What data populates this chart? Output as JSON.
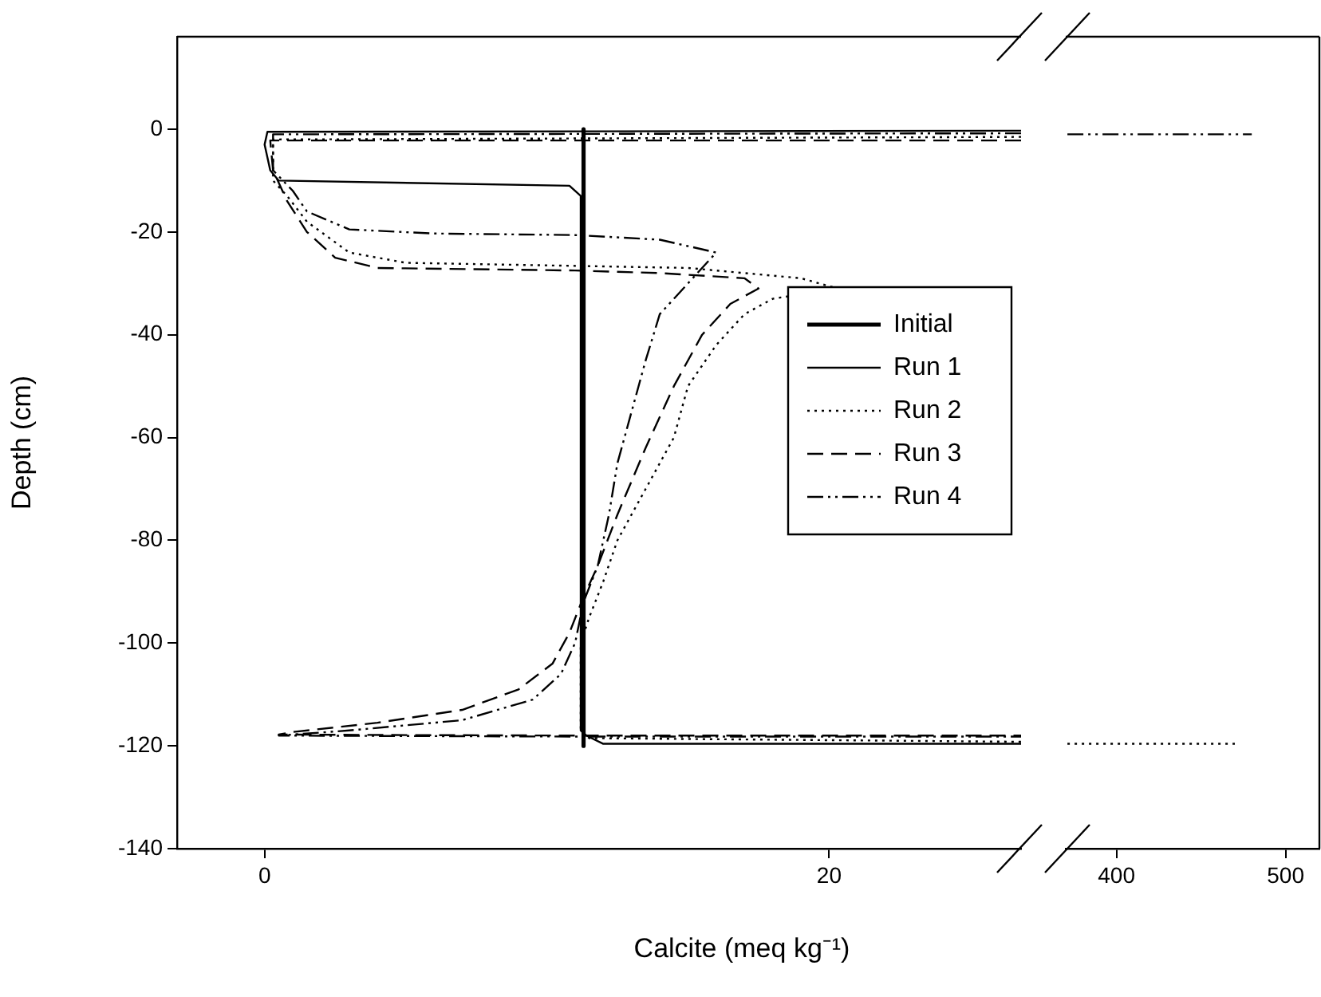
{
  "chart_data": [
    {
      "type": "line",
      "xlabel": "Calcite (meq kg⁻¹)",
      "ylabel": "Depth (cm)",
      "legend": "right",
      "grid": false,
      "xlim": [
        -3.1,
        26.8
      ],
      "xticks": [
        0,
        20
      ],
      "ylim": [
        -140,
        18
      ],
      "yticks": [
        -140,
        -120,
        -100,
        -80,
        -60,
        -40,
        -20,
        0
      ],
      "series": [
        {
          "name": "Initial",
          "color": "#000000",
          "line_style": "solid",
          "x": [
            11.3,
            11.3
          ],
          "values": [
            0,
            -120
          ]
        },
        {
          "name": "Run 1",
          "color": "#000000",
          "line_style": "solid",
          "x": [
            26.8,
            0.1,
            0,
            0.2,
            0.5,
            10.8,
            11.2,
            11.2,
            11.4,
            12,
            26.8
          ],
          "values": [
            -0.3,
            -0.5,
            -3,
            -8,
            -10,
            -11,
            -13,
            -117,
            -118,
            -119.6,
            -119.6
          ]
        },
        {
          "name": "Run 2",
          "color": "#000000",
          "line_style": "dotted",
          "x": [
            26.8,
            0.3,
            0.3,
            0.8,
            1.5,
            3,
            5,
            10,
            15,
            19,
            20.3,
            18,
            17,
            16,
            15,
            14.5,
            13.5,
            12.5,
            12,
            11.5,
            11.2,
            11.2,
            11.5,
            26.8
          ],
          "values": [
            -1.5,
            -2,
            -10,
            -13,
            -18,
            -24,
            -26,
            -26.5,
            -27,
            -29,
            -31,
            -33,
            -36,
            -42,
            -50,
            -60,
            -70,
            -80,
            -88,
            -95,
            -100,
            -117,
            -118.5,
            -119.2
          ]
        },
        {
          "name": "Run 3",
          "color": "#000000",
          "line_style": "dashed",
          "x": [
            26.8,
            0.2,
            0.3,
            0.8,
            1.5,
            2.5,
            4,
            11,
            14,
            17,
            17.5,
            16.5,
            15.5,
            14.5,
            13.5,
            12.5,
            11.8,
            11.3,
            10.8,
            10.2,
            9,
            7,
            4,
            1,
            0.5,
            5,
            11.3,
            26.8
          ],
          "values": [
            -2.2,
            -2.2,
            -8,
            -14,
            -20,
            -25,
            -27,
            -27.5,
            -28,
            -29,
            -31,
            -34,
            -40,
            -50,
            -62,
            -75,
            -85,
            -91,
            -98,
            -104,
            -109,
            -113,
            -115.5,
            -117.3,
            -117.8,
            -117.9,
            -118,
            -118
          ]
        },
        {
          "name": "Run 4",
          "color": "#000000",
          "line_style": "dashdot",
          "x": [
            26.8,
            0.3,
            0.3,
            1,
            1.5,
            3,
            6,
            11,
            14,
            16,
            15,
            14,
            13.5,
            13,
            12.5,
            12.2,
            11.8,
            11.3,
            11,
            10.5,
            9.5,
            7,
            3,
            0.5,
            11.3,
            26.8
          ],
          "values": [
            -0.8,
            -1,
            -8,
            -12,
            -16,
            -19.5,
            -20.3,
            -20.6,
            -21.5,
            -24,
            -30,
            -36,
            -45,
            -55,
            -65,
            -75,
            -85,
            -92,
            -100,
            -106,
            -111,
            -115,
            -117,
            -118,
            -118.2,
            -118.2
          ]
        }
      ]
    },
    {
      "type": "line",
      "grid": false,
      "tick_labels": "x",
      "xlim": [
        370,
        520
      ],
      "xticks": [
        400,
        500
      ],
      "ylim": [
        -140,
        18
      ],
      "yticks": [
        -140,
        -120,
        -100,
        -80,
        -60,
        -40,
        -20,
        0
      ],
      "series": [
        {
          "color": "#000000",
          "line_style": "dashdot",
          "x": [
            371,
            480
          ],
          "values": [
            -1,
            -1
          ]
        },
        {
          "color": "#000000",
          "line_style": "dotted",
          "x": [
            371,
            470
          ],
          "values": [
            -119.6,
            -119.6
          ]
        }
      ]
    }
  ]
}
